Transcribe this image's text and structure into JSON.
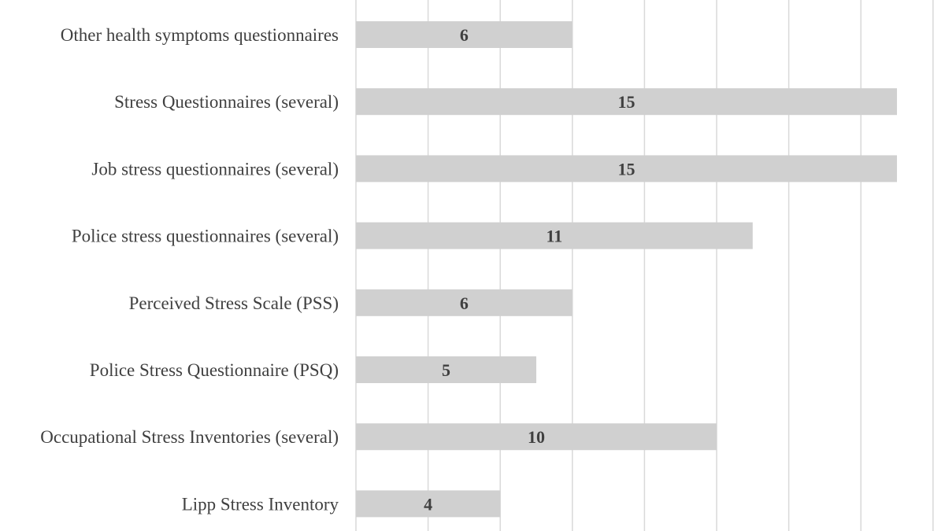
{
  "chart_data": {
    "type": "bar",
    "orientation": "horizontal",
    "categories": [
      "Other health symptoms questionnaires",
      "Stress Questionnaires (several)",
      "Job stress questionnaires (several)",
      "Police stress questionnaires (several)",
      "Perceived Stress Scale (PSS)",
      "Police Stress Questionnaire (PSQ)",
      "Occupational Stress Inventories (several)",
      "Lipp Stress Inventory"
    ],
    "values": [
      6,
      15,
      15,
      11,
      6,
      5,
      10,
      4
    ],
    "title": "",
    "xlabel": "",
    "ylabel": "",
    "xlim": [
      0,
      16
    ],
    "x_gridline_step": 2,
    "grid": true,
    "legend": "none",
    "colors": {
      "bar": "#d0d0d0",
      "gridline": "#d9d9d9",
      "text": "#404040"
    }
  }
}
